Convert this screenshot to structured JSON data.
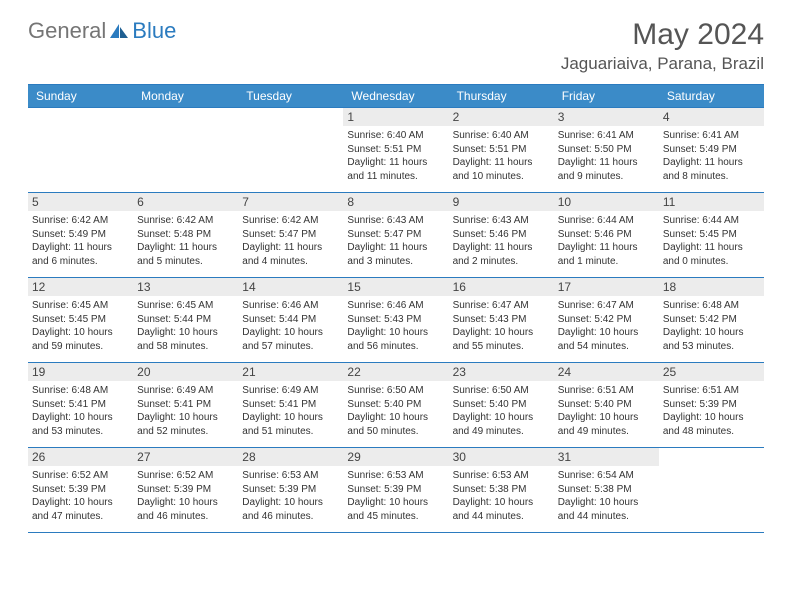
{
  "logo": {
    "text1": "General",
    "text2": "Blue"
  },
  "title": "May 2024",
  "location": "Jaguariaiva, Parana, Brazil",
  "colors": {
    "header_bg": "#3b8bc8",
    "header_text": "#ffffff",
    "border": "#2b7bbf",
    "daynum_bg": "#ececec",
    "body_text": "#333333",
    "title_text": "#555555",
    "logo_gray": "#757575",
    "logo_blue": "#2b7bbf"
  },
  "days_of_week": [
    "Sunday",
    "Monday",
    "Tuesday",
    "Wednesday",
    "Thursday",
    "Friday",
    "Saturday"
  ],
  "weeks": [
    [
      {
        "num": "",
        "lines": [
          "",
          "",
          "",
          ""
        ]
      },
      {
        "num": "",
        "lines": [
          "",
          "",
          "",
          ""
        ]
      },
      {
        "num": "",
        "lines": [
          "",
          "",
          "",
          ""
        ]
      },
      {
        "num": "1",
        "lines": [
          "Sunrise: 6:40 AM",
          "Sunset: 5:51 PM",
          "Daylight: 11 hours",
          "and 11 minutes."
        ]
      },
      {
        "num": "2",
        "lines": [
          "Sunrise: 6:40 AM",
          "Sunset: 5:51 PM",
          "Daylight: 11 hours",
          "and 10 minutes."
        ]
      },
      {
        "num": "3",
        "lines": [
          "Sunrise: 6:41 AM",
          "Sunset: 5:50 PM",
          "Daylight: 11 hours",
          "and 9 minutes."
        ]
      },
      {
        "num": "4",
        "lines": [
          "Sunrise: 6:41 AM",
          "Sunset: 5:49 PM",
          "Daylight: 11 hours",
          "and 8 minutes."
        ]
      }
    ],
    [
      {
        "num": "5",
        "lines": [
          "Sunrise: 6:42 AM",
          "Sunset: 5:49 PM",
          "Daylight: 11 hours",
          "and 6 minutes."
        ]
      },
      {
        "num": "6",
        "lines": [
          "Sunrise: 6:42 AM",
          "Sunset: 5:48 PM",
          "Daylight: 11 hours",
          "and 5 minutes."
        ]
      },
      {
        "num": "7",
        "lines": [
          "Sunrise: 6:42 AM",
          "Sunset: 5:47 PM",
          "Daylight: 11 hours",
          "and 4 minutes."
        ]
      },
      {
        "num": "8",
        "lines": [
          "Sunrise: 6:43 AM",
          "Sunset: 5:47 PM",
          "Daylight: 11 hours",
          "and 3 minutes."
        ]
      },
      {
        "num": "9",
        "lines": [
          "Sunrise: 6:43 AM",
          "Sunset: 5:46 PM",
          "Daylight: 11 hours",
          "and 2 minutes."
        ]
      },
      {
        "num": "10",
        "lines": [
          "Sunrise: 6:44 AM",
          "Sunset: 5:46 PM",
          "Daylight: 11 hours",
          "and 1 minute."
        ]
      },
      {
        "num": "11",
        "lines": [
          "Sunrise: 6:44 AM",
          "Sunset: 5:45 PM",
          "Daylight: 11 hours",
          "and 0 minutes."
        ]
      }
    ],
    [
      {
        "num": "12",
        "lines": [
          "Sunrise: 6:45 AM",
          "Sunset: 5:45 PM",
          "Daylight: 10 hours",
          "and 59 minutes."
        ]
      },
      {
        "num": "13",
        "lines": [
          "Sunrise: 6:45 AM",
          "Sunset: 5:44 PM",
          "Daylight: 10 hours",
          "and 58 minutes."
        ]
      },
      {
        "num": "14",
        "lines": [
          "Sunrise: 6:46 AM",
          "Sunset: 5:44 PM",
          "Daylight: 10 hours",
          "and 57 minutes."
        ]
      },
      {
        "num": "15",
        "lines": [
          "Sunrise: 6:46 AM",
          "Sunset: 5:43 PM",
          "Daylight: 10 hours",
          "and 56 minutes."
        ]
      },
      {
        "num": "16",
        "lines": [
          "Sunrise: 6:47 AM",
          "Sunset: 5:43 PM",
          "Daylight: 10 hours",
          "and 55 minutes."
        ]
      },
      {
        "num": "17",
        "lines": [
          "Sunrise: 6:47 AM",
          "Sunset: 5:42 PM",
          "Daylight: 10 hours",
          "and 54 minutes."
        ]
      },
      {
        "num": "18",
        "lines": [
          "Sunrise: 6:48 AM",
          "Sunset: 5:42 PM",
          "Daylight: 10 hours",
          "and 53 minutes."
        ]
      }
    ],
    [
      {
        "num": "19",
        "lines": [
          "Sunrise: 6:48 AM",
          "Sunset: 5:41 PM",
          "Daylight: 10 hours",
          "and 53 minutes."
        ]
      },
      {
        "num": "20",
        "lines": [
          "Sunrise: 6:49 AM",
          "Sunset: 5:41 PM",
          "Daylight: 10 hours",
          "and 52 minutes."
        ]
      },
      {
        "num": "21",
        "lines": [
          "Sunrise: 6:49 AM",
          "Sunset: 5:41 PM",
          "Daylight: 10 hours",
          "and 51 minutes."
        ]
      },
      {
        "num": "22",
        "lines": [
          "Sunrise: 6:50 AM",
          "Sunset: 5:40 PM",
          "Daylight: 10 hours",
          "and 50 minutes."
        ]
      },
      {
        "num": "23",
        "lines": [
          "Sunrise: 6:50 AM",
          "Sunset: 5:40 PM",
          "Daylight: 10 hours",
          "and 49 minutes."
        ]
      },
      {
        "num": "24",
        "lines": [
          "Sunrise: 6:51 AM",
          "Sunset: 5:40 PM",
          "Daylight: 10 hours",
          "and 49 minutes."
        ]
      },
      {
        "num": "25",
        "lines": [
          "Sunrise: 6:51 AM",
          "Sunset: 5:39 PM",
          "Daylight: 10 hours",
          "and 48 minutes."
        ]
      }
    ],
    [
      {
        "num": "26",
        "lines": [
          "Sunrise: 6:52 AM",
          "Sunset: 5:39 PM",
          "Daylight: 10 hours",
          "and 47 minutes."
        ]
      },
      {
        "num": "27",
        "lines": [
          "Sunrise: 6:52 AM",
          "Sunset: 5:39 PM",
          "Daylight: 10 hours",
          "and 46 minutes."
        ]
      },
      {
        "num": "28",
        "lines": [
          "Sunrise: 6:53 AM",
          "Sunset: 5:39 PM",
          "Daylight: 10 hours",
          "and 46 minutes."
        ]
      },
      {
        "num": "29",
        "lines": [
          "Sunrise: 6:53 AM",
          "Sunset: 5:39 PM",
          "Daylight: 10 hours",
          "and 45 minutes."
        ]
      },
      {
        "num": "30",
        "lines": [
          "Sunrise: 6:53 AM",
          "Sunset: 5:38 PM",
          "Daylight: 10 hours",
          "and 44 minutes."
        ]
      },
      {
        "num": "31",
        "lines": [
          "Sunrise: 6:54 AM",
          "Sunset: 5:38 PM",
          "Daylight: 10 hours",
          "and 44 minutes."
        ]
      },
      {
        "num": "",
        "lines": [
          "",
          "",
          "",
          ""
        ]
      }
    ]
  ]
}
